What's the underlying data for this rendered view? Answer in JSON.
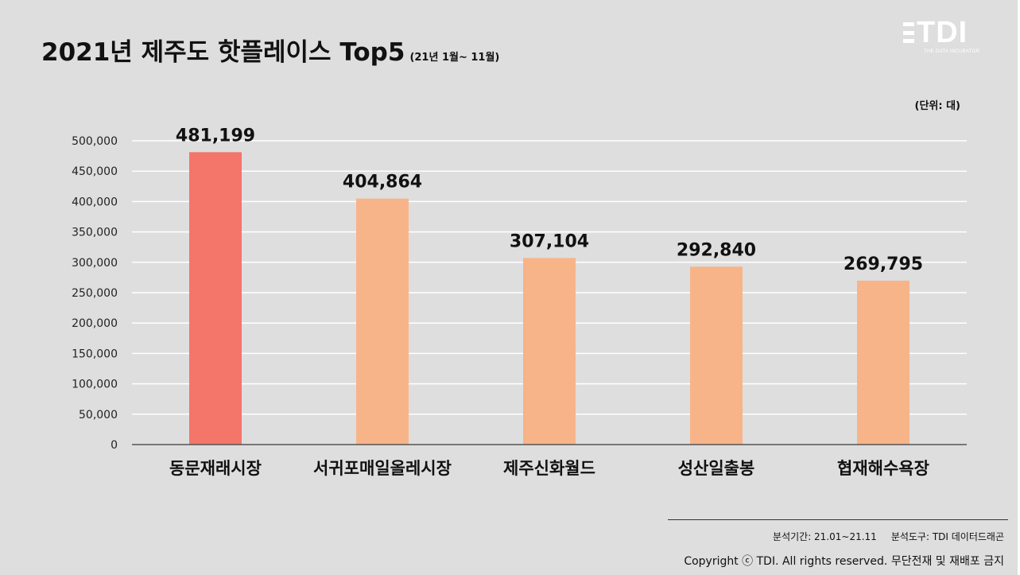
{
  "header": {
    "title": "2021년 제주도 핫플레이스 Top5",
    "subtitle": "(21년 1월~ 11월)",
    "unit": "(단위: 대)"
  },
  "logo": {
    "text": "TDI",
    "tagline": "THE DATA INCUBATOR"
  },
  "chart_data": {
    "type": "bar",
    "categories": [
      "동문재래시장",
      "서귀포매일올레시장",
      "제주신화월드",
      "성산일출봉",
      "협재해수욕장"
    ],
    "values": [
      481199,
      404864,
      307104,
      292840,
      269795
    ],
    "value_labels": [
      "481,199",
      "404,864",
      "307,104",
      "292,840",
      "269,795"
    ],
    "ylim": [
      0,
      500000
    ],
    "yticks": [
      0,
      50000,
      100000,
      150000,
      200000,
      250000,
      300000,
      350000,
      400000,
      450000,
      500000
    ],
    "ytick_labels": [
      "0",
      "50,000",
      "100,000",
      "150,000",
      "200,000",
      "250,000",
      "300,000",
      "350,000",
      "400,000",
      "450,000",
      "500,000"
    ],
    "grid": true,
    "colors": {
      "highlight": "#f4756a",
      "default": "#f7b488",
      "grid": "#ffffff",
      "axis": "#555555"
    },
    "highlight_index": 0
  },
  "footer": {
    "analysis_period": "분석기간: 21.01~21.11",
    "analysis_tool": "분석도구: TDI 데이터드래곤",
    "copyright": "Copyright ⓒ TDI. All rights reserved. 무단전재 및 재배포 금지"
  }
}
